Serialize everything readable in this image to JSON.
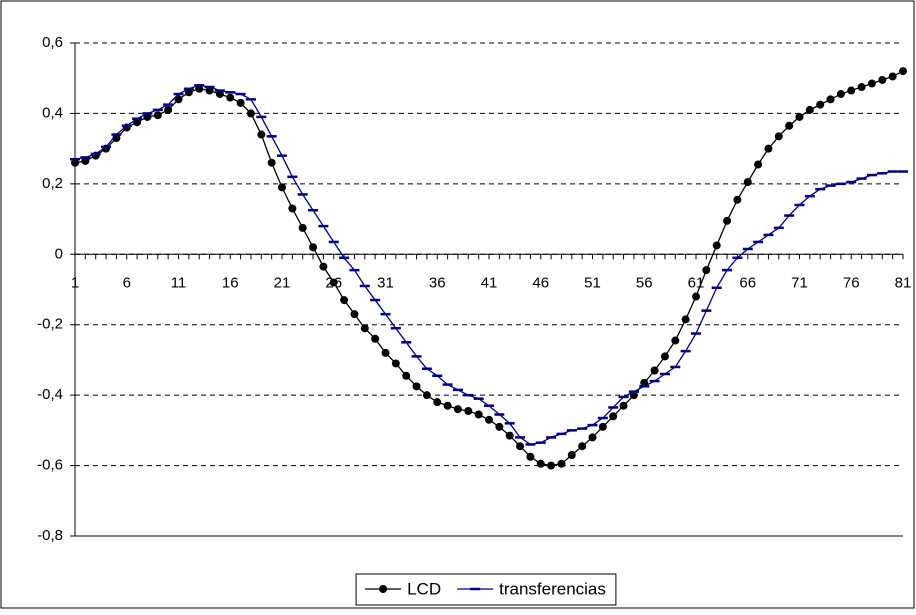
{
  "chart_data": {
    "type": "line",
    "categories": [
      "1",
      null,
      null,
      null,
      null,
      "6",
      null,
      null,
      null,
      null,
      "11",
      null,
      null,
      null,
      null,
      "16",
      null,
      null,
      null,
      null,
      "21",
      null,
      null,
      null,
      null,
      "26",
      null,
      null,
      null,
      null,
      "31",
      null,
      null,
      null,
      null,
      "36",
      null,
      null,
      null,
      null,
      "41",
      null,
      null,
      null,
      null,
      "46",
      null,
      null,
      null,
      null,
      "51",
      null,
      null,
      null,
      null,
      "56",
      null,
      null,
      null,
      null,
      "61",
      null,
      null,
      null,
      null,
      "66",
      null,
      null,
      null,
      null,
      "71",
      null,
      null,
      null,
      null,
      "76",
      null,
      null,
      null,
      null,
      "81"
    ],
    "series": [
      {
        "name": "LCD",
        "color": "#000000",
        "marker": "circle",
        "values": [
          0.26,
          0.265,
          0.28,
          0.3,
          0.33,
          0.36,
          0.375,
          0.39,
          0.395,
          0.41,
          0.44,
          0.46,
          0.47,
          0.465,
          0.455,
          0.445,
          0.43,
          0.4,
          0.34,
          0.26,
          0.19,
          0.13,
          0.075,
          0.02,
          -0.035,
          -0.08,
          -0.13,
          -0.17,
          -0.21,
          -0.24,
          -0.28,
          -0.31,
          -0.345,
          -0.375,
          -0.4,
          -0.42,
          -0.43,
          -0.44,
          -0.445,
          -0.455,
          -0.47,
          -0.49,
          -0.515,
          -0.545,
          -0.575,
          -0.595,
          -0.6,
          -0.595,
          -0.57,
          -0.545,
          -0.52,
          -0.49,
          -0.46,
          -0.43,
          -0.4,
          -0.365,
          -0.33,
          -0.29,
          -0.245,
          -0.185,
          -0.12,
          -0.045,
          0.025,
          0.095,
          0.155,
          0.205,
          0.255,
          0.3,
          0.335,
          0.365,
          0.39,
          0.41,
          0.425,
          0.44,
          0.455,
          0.465,
          0.475,
          0.485,
          0.495,
          0.505,
          0.52
        ]
      },
      {
        "name": "transferencias",
        "color": "#000080",
        "marker": "dash",
        "values": [
          0.27,
          0.275,
          0.285,
          0.305,
          0.34,
          0.365,
          0.385,
          0.4,
          0.41,
          0.425,
          0.455,
          0.47,
          0.48,
          0.475,
          0.465,
          0.46,
          0.455,
          0.44,
          0.39,
          0.335,
          0.28,
          0.22,
          0.17,
          0.125,
          0.08,
          0.035,
          -0.01,
          -0.045,
          -0.09,
          -0.13,
          -0.17,
          -0.21,
          -0.25,
          -0.29,
          -0.325,
          -0.345,
          -0.37,
          -0.385,
          -0.4,
          -0.41,
          -0.43,
          -0.455,
          -0.48,
          -0.52,
          -0.54,
          -0.535,
          -0.52,
          -0.51,
          -0.5,
          -0.495,
          -0.485,
          -0.465,
          -0.435,
          -0.405,
          -0.39,
          -0.375,
          -0.36,
          -0.34,
          -0.32,
          -0.275,
          -0.225,
          -0.16,
          -0.095,
          -0.045,
          -0.01,
          0.015,
          0.035,
          0.055,
          0.075,
          0.11,
          0.14,
          0.165,
          0.185,
          0.195,
          0.2,
          0.205,
          0.215,
          0.225,
          0.23,
          0.235,
          0.235
        ]
      }
    ],
    "ylim": [
      -0.8,
      0.6
    ],
    "yticks": [
      {
        "value": -0.8,
        "label": "-0,8"
      },
      {
        "value": -0.6,
        "label": "-0,6"
      },
      {
        "value": -0.4,
        "label": "-0,4"
      },
      {
        "value": -0.2,
        "label": "-0,2"
      },
      0,
      {
        "value": 0.2,
        "label": "0,2"
      },
      {
        "value": 0.4,
        "label": "0,4"
      },
      {
        "value": 0.6,
        "label": "0,6"
      }
    ],
    "grid": true,
    "legend": "bottom"
  }
}
